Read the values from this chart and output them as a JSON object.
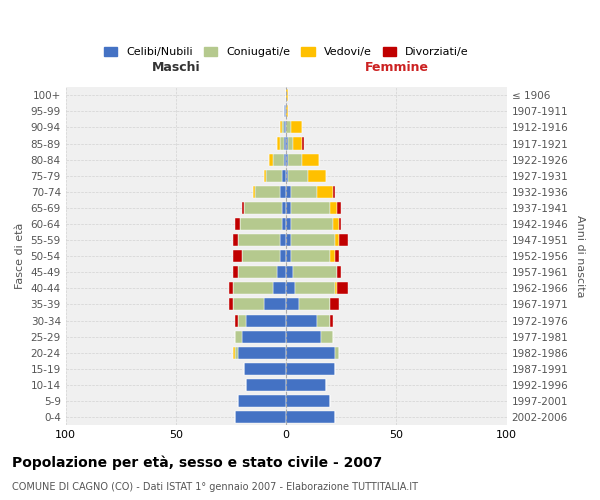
{
  "age_groups": [
    "0-4",
    "5-9",
    "10-14",
    "15-19",
    "20-24",
    "25-29",
    "30-34",
    "35-39",
    "40-44",
    "45-49",
    "50-54",
    "55-59",
    "60-64",
    "65-69",
    "70-74",
    "75-79",
    "80-84",
    "85-89",
    "90-94",
    "95-99",
    "100+"
  ],
  "birth_years": [
    "2002-2006",
    "1997-2001",
    "1992-1996",
    "1987-1991",
    "1982-1986",
    "1977-1981",
    "1972-1976",
    "1967-1971",
    "1962-1966",
    "1957-1961",
    "1952-1956",
    "1947-1951",
    "1942-1946",
    "1937-1941",
    "1932-1936",
    "1927-1931",
    "1922-1926",
    "1917-1921",
    "1912-1916",
    "1907-1911",
    "≤ 1906"
  ],
  "colors": {
    "celibi": "#4472c4",
    "coniugati": "#b5c98e",
    "vedovi": "#ffc000",
    "divorziati": "#c00000"
  },
  "maschi": {
    "celibi": [
      23,
      22,
      18,
      19,
      22,
      20,
      18,
      10,
      6,
      4,
      3,
      3,
      2,
      2,
      3,
      2,
      1,
      1,
      1,
      1,
      0
    ],
    "coniugati": [
      0,
      0,
      0,
      0,
      1,
      3,
      4,
      14,
      18,
      18,
      17,
      19,
      19,
      17,
      11,
      7,
      5,
      2,
      1,
      0,
      0
    ],
    "vedovi": [
      0,
      0,
      0,
      0,
      1,
      0,
      0,
      0,
      0,
      0,
      0,
      0,
      0,
      0,
      1,
      1,
      2,
      1,
      1,
      0,
      0
    ],
    "divorziati": [
      0,
      0,
      0,
      0,
      0,
      0,
      1,
      2,
      2,
      2,
      4,
      2,
      2,
      1,
      0,
      0,
      0,
      0,
      0,
      0,
      0
    ]
  },
  "femmine": {
    "celibi": [
      22,
      20,
      18,
      22,
      22,
      16,
      14,
      6,
      4,
      3,
      2,
      2,
      2,
      2,
      2,
      1,
      1,
      1,
      0,
      0,
      0
    ],
    "coniugati": [
      0,
      0,
      0,
      0,
      2,
      5,
      6,
      14,
      18,
      20,
      18,
      20,
      19,
      18,
      12,
      9,
      6,
      2,
      2,
      0,
      0
    ],
    "vedovi": [
      0,
      0,
      0,
      0,
      0,
      0,
      0,
      0,
      1,
      0,
      2,
      2,
      3,
      3,
      7,
      8,
      8,
      4,
      5,
      1,
      1
    ],
    "divorziati": [
      0,
      0,
      0,
      0,
      0,
      0,
      1,
      4,
      5,
      2,
      2,
      4,
      1,
      2,
      1,
      0,
      0,
      1,
      0,
      0,
      0
    ]
  },
  "xlim": 100,
  "xlabel_maschi": "Maschi",
  "xlabel_femmine": "Femmine",
  "ylabel": "Fasce di età",
  "ylabel_right": "Anni di nascita",
  "title": "Popolazione per età, sesso e stato civile - 2007",
  "subtitle": "COMUNE DI CAGNO (CO) - Dati ISTAT 1° gennaio 2007 - Elaborazione TUTTITALIA.IT",
  "legend_labels": [
    "Celibi/Nubili",
    "Coniugati/e",
    "Vedovi/e",
    "Divorziati/e"
  ],
  "bg_color": "#f0f0f0",
  "grid_color": "#cccccc",
  "bar_height": 0.75
}
